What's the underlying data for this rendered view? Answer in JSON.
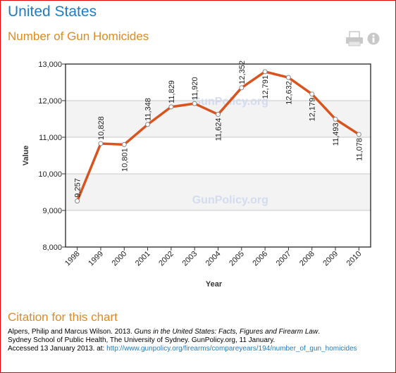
{
  "header": {
    "country": "United States",
    "chart_title": "Number of Gun Homicides"
  },
  "toolbar": {
    "print_icon": "printer-icon",
    "info_icon": "info-icon",
    "icon_color": "#c8c8c8"
  },
  "watermark": "GunPolicy.org",
  "chart_data": {
    "type": "line",
    "title": "Number of Gun Homicides",
    "xlabel": "Year",
    "ylabel": "Value",
    "categories": [
      "1998",
      "1999",
      "2000",
      "2001",
      "2002",
      "2003",
      "2004",
      "2005",
      "2006",
      "2007",
      "2008",
      "2009",
      "2010"
    ],
    "series": [
      {
        "values": [
          9257,
          10828,
          10801,
          11348,
          11829,
          11920,
          11624,
          12352,
          12791,
          12632,
          12179,
          11493,
          11078
        ],
        "labels": [
          "9,257",
          "10,828",
          "10,801",
          "11,348",
          "11,829",
          "11,920",
          "11,624",
          "12,352",
          "12,791",
          "12,632",
          "12,179",
          "11,493",
          "11,078"
        ],
        "color": "#d9531e"
      }
    ],
    "yticks": [
      "8,000",
      "9,000",
      "10,000",
      "11,000",
      "12,000",
      "13,000"
    ],
    "ylim": [
      8000,
      13000
    ],
    "grid": true,
    "legend": "none"
  },
  "citation": {
    "heading": "Citation for this chart",
    "line1_authors": "Alpers, Philip and Marcus Wilson. 2013. ",
    "line1_title": "Guns in the United States: Facts, Figures and Firearm Law",
    "line1_end": ".",
    "line2": "Sydney School of Public Health, The University of Sydney. GunPolicy.org, 11 January.",
    "line3_prefix": "Accessed 13 January 2013. at: ",
    "url": "http://www.gunpolicy.org/firearms/compareyears/194/number_of_gun_homicides"
  },
  "colors": {
    "title_blue": "#1f7cc1",
    "accent_orange": "#e08a1e",
    "frame_red": "#e60000",
    "line_orange": "#d9531e"
  }
}
